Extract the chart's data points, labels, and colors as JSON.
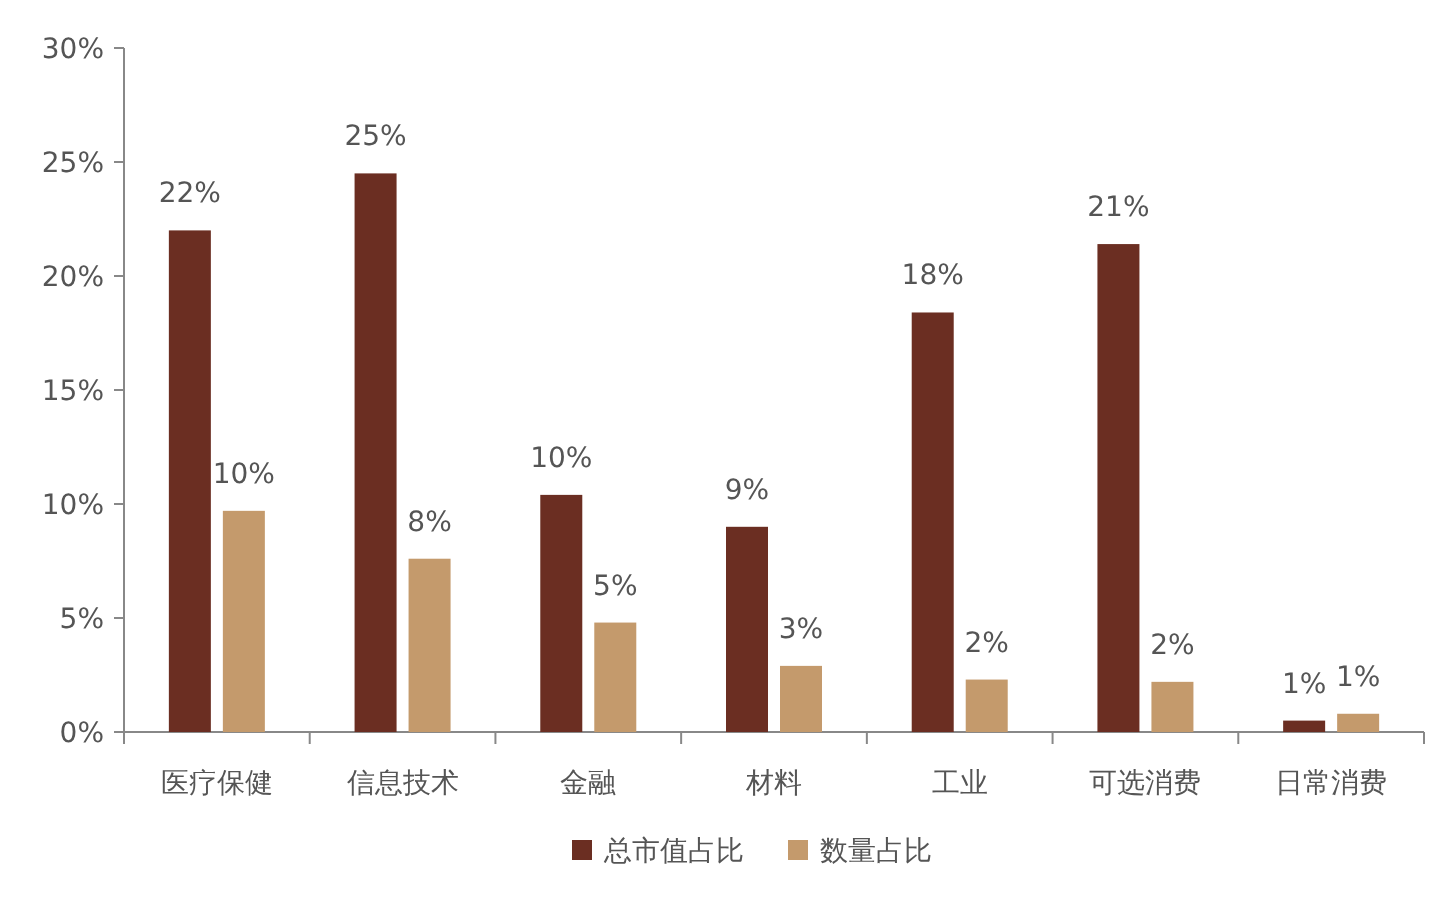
{
  "chart_data": {
    "type": "bar",
    "categories": [
      "医疗保健",
      "信息技术",
      "金融",
      "材料",
      "工业",
      "可选消费",
      "日常消费"
    ],
    "series": [
      {
        "name": "总市值占比",
        "color": "#6b2e22",
        "values": [
          22.0,
          24.5,
          10.4,
          9.0,
          18.4,
          21.4,
          0.5
        ],
        "value_labels": [
          "22%",
          "25%",
          "10%",
          "9%",
          "18%",
          "21%",
          "1%"
        ]
      },
      {
        "name": "数量占比",
        "color": "#c49a6c",
        "values": [
          9.7,
          7.6,
          4.8,
          2.9,
          2.3,
          2.2,
          0.8
        ],
        "value_labels": [
          "10%",
          "8%",
          "5%",
          "3%",
          "2%",
          "2%",
          "1%"
        ]
      }
    ],
    "ylim": [
      0,
      30
    ],
    "yticks": [
      {
        "value": 0,
        "label": "0%"
      },
      {
        "value": 5,
        "label": "5%"
      },
      {
        "value": 10,
        "label": "10%"
      },
      {
        "value": 15,
        "label": "15%"
      },
      {
        "value": 20,
        "label": "20%"
      },
      {
        "value": 25,
        "label": "25%"
      },
      {
        "value": 30,
        "label": "30%"
      }
    ],
    "legend": "bottom"
  }
}
